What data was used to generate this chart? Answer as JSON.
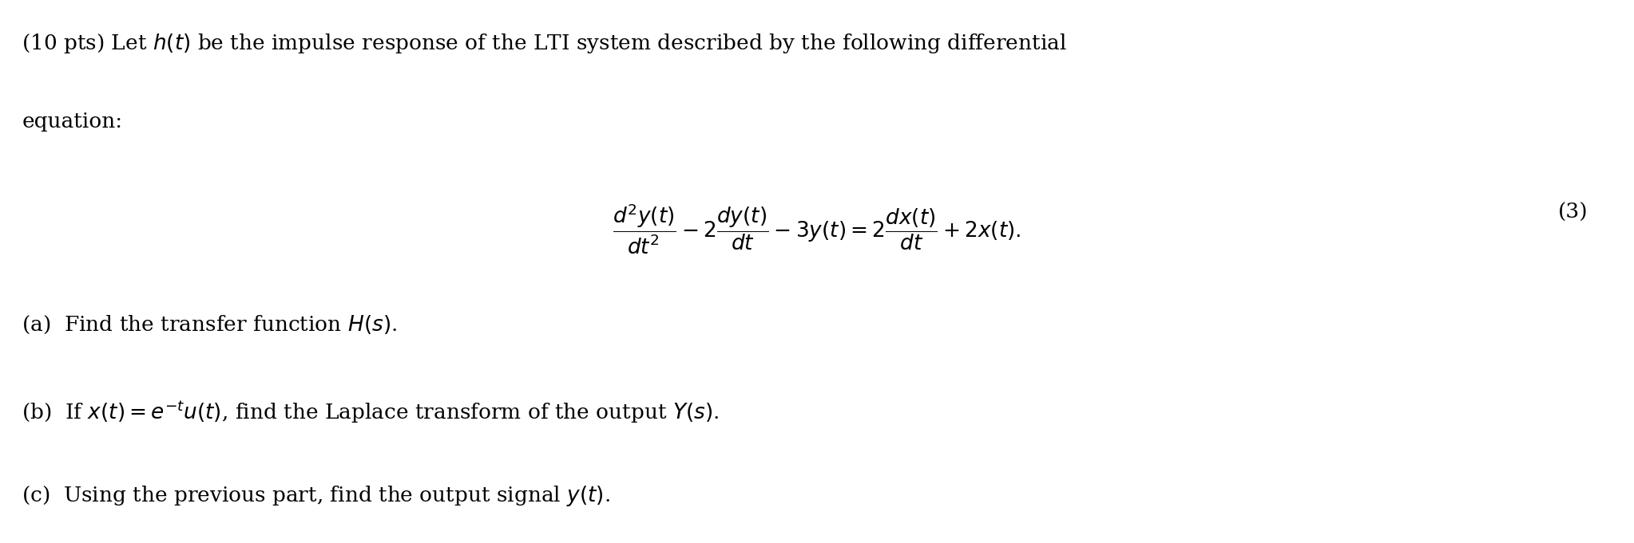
{
  "background_color": "#ffffff",
  "text_color": "#000000",
  "figsize": [
    20.46,
    6.81
  ],
  "dpi": 100,
  "line1": "(10 pts) Let $h(t)$ be the impulse response of the LTI system described by the following differential",
  "line2": "equation:",
  "equation": "$\\dfrac{d^2y(t)}{dt^2} - 2\\dfrac{dy(t)}{dt} - 3y(t) = 2\\dfrac{dx(t)}{dt} + 2x(t).$",
  "eq_number": "(3)",
  "part_a": "(a)  Find the transfer function $H(s)$.",
  "part_b": "(b)  If $x(t) = e^{-t}u(t)$, find the Laplace transform of the output $Y(s)$.",
  "part_c": "(c)  Using the previous part, find the output signal $y(t)$.",
  "font_size_main": 19,
  "font_size_eq": 19,
  "font_size_parts": 19
}
